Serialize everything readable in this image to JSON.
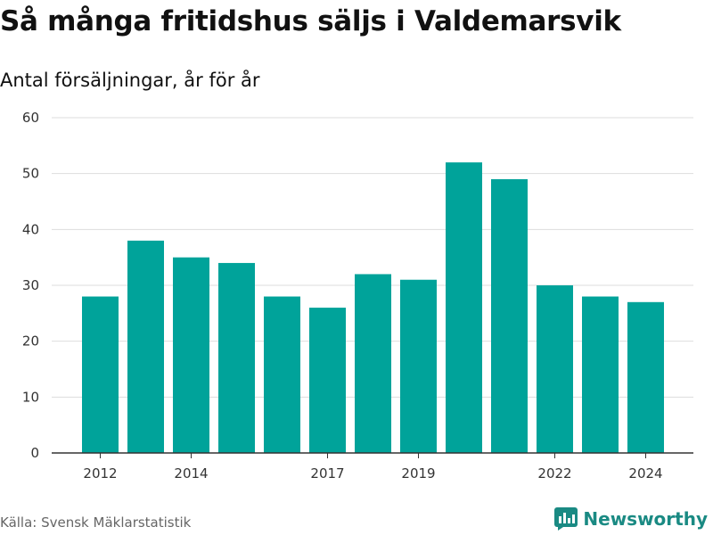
{
  "header": {
    "title": "Så många fritidshus säljs i Valdemarsvik",
    "subtitle": "Antal försäljningar, år för år"
  },
  "footer": {
    "source": "Källa: Svensk Mäklarstatistik",
    "brand": "Newsworthy",
    "brand_icon": "bar-chart-logo-icon"
  },
  "colors": {
    "bar": "#00a39a",
    "grid": "#dddddd",
    "axis": "#333333",
    "brand": "#1a8a83"
  },
  "chart_data": {
    "type": "bar",
    "categories": [
      "2012",
      "2013",
      "2014",
      "2015",
      "2016",
      "2017",
      "2018",
      "2019",
      "2020",
      "2021",
      "2022",
      "2023",
      "2024"
    ],
    "values": [
      28,
      38,
      35,
      34,
      28,
      26,
      32,
      31,
      52,
      49,
      30,
      28,
      27
    ],
    "xtick_labels": [
      "2012",
      "2014",
      "2017",
      "2019",
      "2022",
      "2024"
    ],
    "ytick_labels": [
      0,
      10,
      20,
      30,
      40,
      50,
      60
    ],
    "ylim": [
      0,
      60
    ],
    "grid": true,
    "legend": "none"
  }
}
